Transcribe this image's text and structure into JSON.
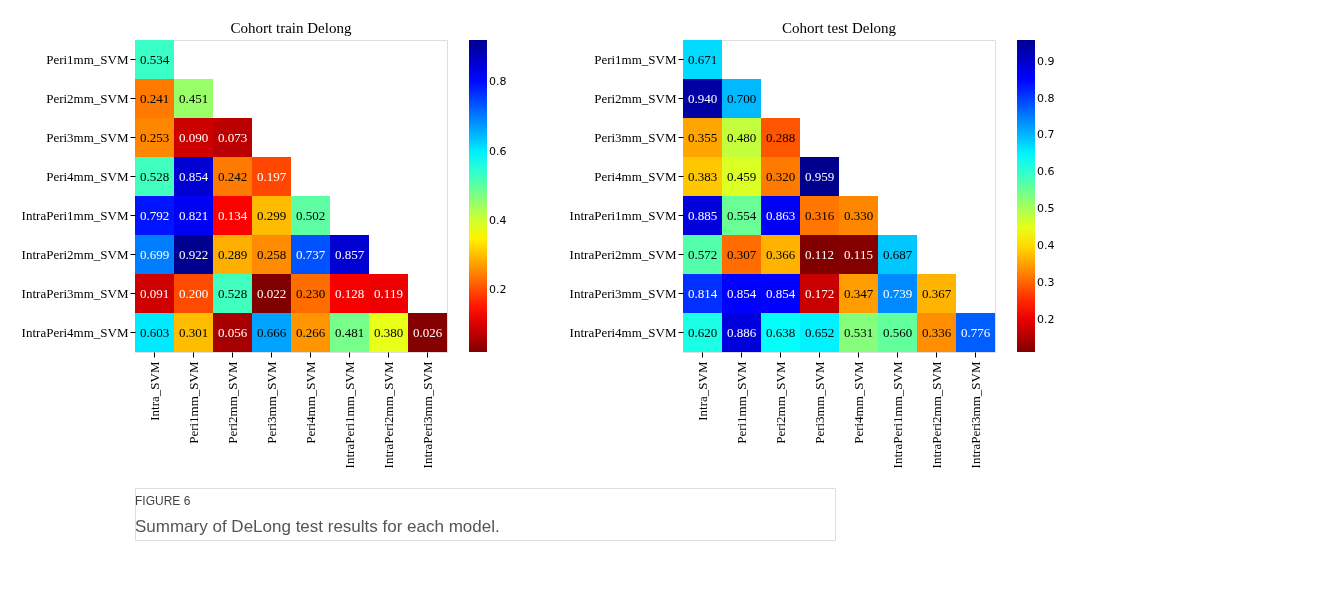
{
  "chart_data": [
    {
      "type": "heatmap",
      "title": "Cohort train Delong",
      "categories": [
        "Intra_SVM",
        "Peri1mm_SVM",
        "Peri2mm_SVM",
        "Peri3mm_SVM",
        "Peri4mm_SVM",
        "IntraPeri1mm_SVM",
        "IntraPeri2mm_SVM",
        "IntraPeri3mm_SVM"
      ],
      "y_categories": [
        "Peri1mm_SVM",
        "Peri2mm_SVM",
        "Peri3mm_SVM",
        "Peri4mm_SVM",
        "IntraPeri1mm_SVM",
        "IntraPeri2mm_SVM",
        "IntraPeri3mm_SVM",
        "IntraPeri4mm_SVM"
      ],
      "cells": [
        [
          0.534,
          null,
          null,
          null,
          null,
          null,
          null,
          null
        ],
        [
          0.241,
          0.451,
          null,
          null,
          null,
          null,
          null,
          null
        ],
        [
          0.253,
          0.09,
          0.073,
          null,
          null,
          null,
          null,
          null
        ],
        [
          0.528,
          0.854,
          0.242,
          0.197,
          null,
          null,
          null,
          null
        ],
        [
          0.792,
          0.821,
          0.134,
          0.299,
          0.502,
          null,
          null,
          null
        ],
        [
          0.699,
          0.922,
          0.289,
          0.258,
          0.737,
          0.857,
          null,
          null
        ],
        [
          0.091,
          0.2,
          0.528,
          0.022,
          0.23,
          0.128,
          0.119,
          null
        ],
        [
          0.603,
          0.301,
          0.056,
          0.666,
          0.266,
          0.481,
          0.38,
          0.026
        ]
      ],
      "cell_labels": [
        [
          "0.534",
          null,
          null,
          null,
          null,
          null,
          null,
          null
        ],
        [
          "0.241",
          "0.451",
          null,
          null,
          null,
          null,
          null,
          null
        ],
        [
          "0.253",
          "0.090",
          "0.073",
          null,
          null,
          null,
          null,
          null
        ],
        [
          "0.528",
          "0.854",
          "0.242",
          "0.197",
          null,
          null,
          null,
          null
        ],
        [
          "0.792",
          "0.821",
          "0.134",
          "0.299",
          "0.502",
          null,
          null,
          null
        ],
        [
          "0.699",
          "0.922",
          "0.289",
          "0.258",
          "0.737",
          "0.857",
          null,
          null
        ],
        [
          "0.091",
          "0.200",
          "0.528",
          "0.022",
          "0.230",
          "0.128",
          "0.119",
          null
        ],
        [
          "0.603",
          "0.301",
          "0.056",
          "0.666",
          "0.266",
          "0.481",
          "0.380",
          "0.026"
        ]
      ],
      "clim": [
        0.022,
        0.922
      ],
      "cticks": [
        0.2,
        0.4,
        0.6,
        0.8
      ],
      "annotations": [
        "FIGURE 6",
        "Summary of DeLong test results for each model."
      ]
    },
    {
      "type": "heatmap",
      "title": "Cohort test Delong",
      "categories": [
        "Intra_SVM",
        "Peri1mm_SVM",
        "Peri2mm_SVM",
        "Peri3mm_SVM",
        "Peri4mm_SVM",
        "IntraPeri1mm_SVM",
        "IntraPeri2mm_SVM",
        "IntraPeri3mm_SVM"
      ],
      "y_categories": [
        "Peri1mm_SVM",
        "Peri2mm_SVM",
        "Peri3mm_SVM",
        "Peri4mm_SVM",
        "IntraPeri1mm_SVM",
        "IntraPeri2mm_SVM",
        "IntraPeri3mm_SVM",
        "IntraPeri4mm_SVM"
      ],
      "cells": [
        [
          0.671,
          null,
          null,
          null,
          null,
          null,
          null,
          null
        ],
        [
          0.94,
          0.7,
          null,
          null,
          null,
          null,
          null,
          null
        ],
        [
          0.355,
          0.48,
          0.288,
          null,
          null,
          null,
          null,
          null
        ],
        [
          0.383,
          0.459,
          0.32,
          0.959,
          null,
          null,
          null,
          null
        ],
        [
          0.885,
          0.554,
          0.863,
          0.316,
          0.33,
          null,
          null,
          null
        ],
        [
          0.572,
          0.307,
          0.366,
          0.112,
          0.115,
          0.687,
          null,
          null
        ],
        [
          0.814,
          0.854,
          0.854,
          0.172,
          0.347,
          0.739,
          0.367,
          null
        ],
        [
          0.62,
          0.886,
          0.638,
          0.652,
          0.531,
          0.56,
          0.336,
          0.776
        ]
      ],
      "cell_labels": [
        [
          "0.671",
          null,
          null,
          null,
          null,
          null,
          null,
          null
        ],
        [
          "0.940",
          "0.700",
          null,
          null,
          null,
          null,
          null,
          null
        ],
        [
          "0.355",
          "0.480",
          "0.288",
          null,
          null,
          null,
          null,
          null
        ],
        [
          "0.383",
          "0.459",
          "0.320",
          "0.959",
          null,
          null,
          null,
          null
        ],
        [
          "0.885",
          "0.554",
          "0.863",
          "0.316",
          "0.330",
          null,
          null,
          null
        ],
        [
          "0.572",
          "0.307",
          "0.366",
          "0.112",
          "0.115",
          "0.687",
          null,
          null
        ],
        [
          "0.814",
          "0.854",
          "0.854",
          "0.172",
          "0.347",
          "0.739",
          "0.367",
          null
        ],
        [
          "0.620",
          "0.886",
          "0.638",
          "0.652",
          "0.531",
          "0.560",
          "0.336",
          "0.776"
        ]
      ],
      "clim": [
        0.112,
        0.959
      ],
      "cticks": [
        0.2,
        0.3,
        0.4,
        0.5,
        0.6,
        0.7,
        0.8,
        0.9
      ]
    }
  ]
}
